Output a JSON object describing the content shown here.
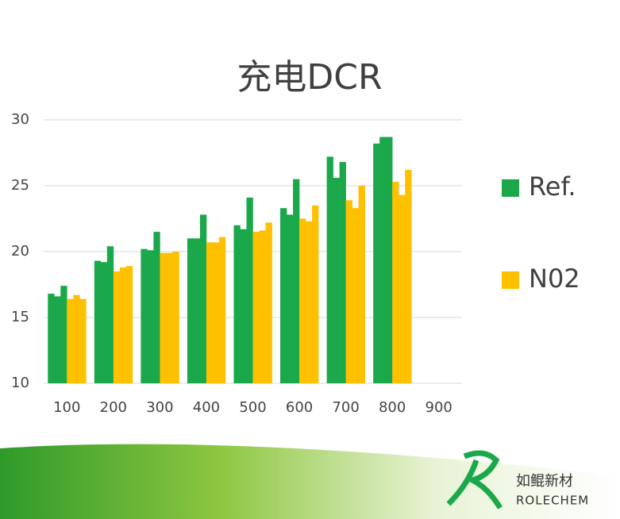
{
  "chart_data": {
    "type": "bar",
    "title": "充电DCR",
    "categories": [
      "100",
      "200",
      "300",
      "400",
      "500",
      "600",
      "700",
      "800",
      "900"
    ],
    "series": [
      {
        "name": "Ref.",
        "color": "#1aa84a",
        "values": [
          [
            16.8,
            16.6,
            17.4
          ],
          [
            19.3,
            19.2,
            20.4
          ],
          [
            20.2,
            20.1,
            21.5
          ],
          [
            21.0,
            21.0,
            22.8
          ],
          [
            22.0,
            21.7,
            24.1
          ],
          [
            23.3,
            22.8,
            25.5
          ],
          [
            27.2,
            25.6,
            26.8
          ],
          [
            28.2,
            28.7,
            28.7
          ],
          null
        ]
      },
      {
        "name": "N02",
        "color": "#ffc000",
        "values": [
          [
            16.4,
            16.7,
            16.4
          ],
          [
            18.5,
            18.8,
            18.9
          ],
          [
            19.9,
            19.9,
            20.0
          ],
          [
            20.7,
            20.7,
            21.1
          ],
          [
            21.5,
            21.6,
            22.2
          ],
          [
            22.5,
            22.3,
            23.5
          ],
          [
            23.9,
            23.3,
            25.0
          ],
          [
            25.3,
            24.3,
            26.2
          ],
          null
        ]
      }
    ],
    "ylim": [
      10,
      30
    ],
    "yticks": [
      10,
      15,
      20,
      25,
      30
    ],
    "grid": true,
    "legend": "right"
  },
  "branding": {
    "name_cn": "如鲲新材",
    "name_en": "ROLECHEM"
  }
}
